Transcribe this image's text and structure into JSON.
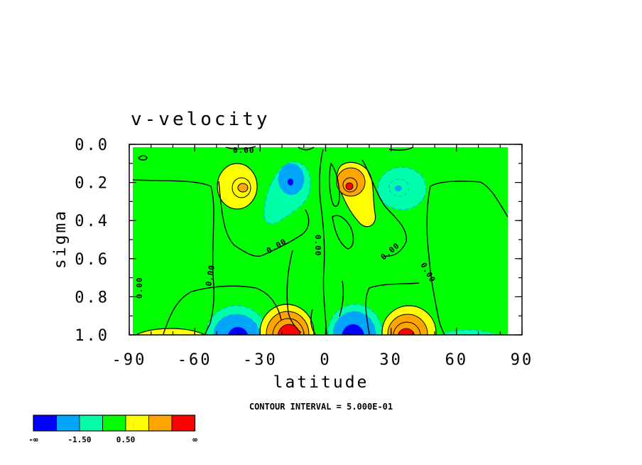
{
  "chart_data": {
    "type": "contour",
    "title": "v-velocity",
    "xlabel": "latitude",
    "ylabel": "sigma",
    "xlim": [
      -90,
      90
    ],
    "ylim": [
      1.0,
      0.0
    ],
    "x_ticks": [
      "-90",
      "-60",
      "-30",
      "0",
      "30",
      "60",
      "90"
    ],
    "y_ticks": [
      "0.0",
      "0.2",
      "0.4",
      "0.6",
      "0.8",
      "1.0"
    ],
    "contour_interval_text": "CONTOUR INTERVAL = 5.000E-01",
    "contour_labels": [
      "0.00",
      "0.00",
      "0.00",
      "0.00",
      "0.00",
      "0.00",
      "0.00"
    ],
    "colorbar": {
      "colors": [
        "#0000ff",
        "#00a5ff",
        "#00ffaa",
        "#00ff00",
        "#ffff00",
        "#ffa500",
        "#ff0000"
      ],
      "labels": [
        "-∞",
        "-1.50",
        "0.50",
        "∞"
      ]
    },
    "features": [
      {
        "kind": "max",
        "lat": -40,
        "sigma": 0.23,
        "value": 0.75
      },
      {
        "kind": "min",
        "lat": -12,
        "sigma": 0.21,
        "value": -1.25
      },
      {
        "kind": "max",
        "lat": 13,
        "sigma": 0.22,
        "value": 1.25
      },
      {
        "kind": "min",
        "lat": 38,
        "sigma": 0.23,
        "value": -0.75
      },
      {
        "kind": "max",
        "lat": -70,
        "sigma": 1.0,
        "value": 0.75
      },
      {
        "kind": "min",
        "lat": -40,
        "sigma": 0.97,
        "value": -2.25
      },
      {
        "kind": "max",
        "lat": -15,
        "sigma": 0.97,
        "value": 2.75
      },
      {
        "kind": "min",
        "lat": 15,
        "sigma": 0.97,
        "value": -2.75
      },
      {
        "kind": "max",
        "lat": 40,
        "sigma": 0.98,
        "value": 2.25
      },
      {
        "kind": "min",
        "lat": 70,
        "sigma": 1.0,
        "value": -0.75
      }
    ]
  }
}
